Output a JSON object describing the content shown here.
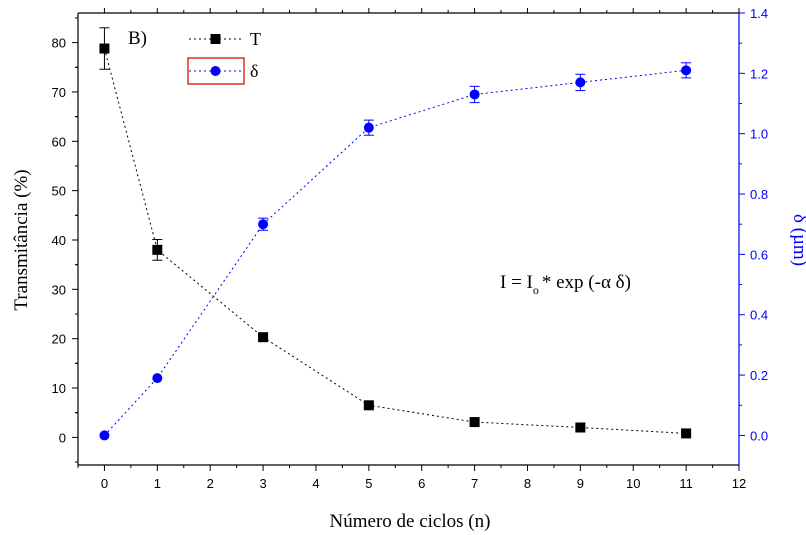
{
  "chart_data": {
    "type": "line",
    "panel_label": "B)",
    "xlabel": "Número de ciclos (n)",
    "ylabel_left": "Transmitância (%)",
    "ylabel_right": "δ (µm)",
    "xlim": [
      -0.5,
      12
    ],
    "ylim_left": [
      -5.6,
      86
    ],
    "ylim_right": [
      -0.098,
      1.4
    ],
    "x_ticks": [
      "0",
      "1",
      "2",
      "3",
      "4",
      "5",
      "6",
      "7",
      "8",
      "9",
      "10",
      "11",
      "12"
    ],
    "y_left_ticks": [
      "0",
      "10",
      "20",
      "30",
      "40",
      "50",
      "60",
      "70",
      "80"
    ],
    "y_right_ticks": [
      "0.0",
      "0.2",
      "0.4",
      "0.6",
      "0.8",
      "1.0",
      "1.2",
      "1.4"
    ],
    "grid": false,
    "legend_position": "top-left",
    "annotation": {
      "lhs": "I = I",
      "sub": "o",
      "rhs": "* exp (-α δ)"
    },
    "series": [
      {
        "name": "T",
        "axis": "left",
        "color": "#000000",
        "marker": "square",
        "x": [
          0,
          1,
          3,
          5,
          7,
          9,
          11
        ],
        "y": [
          78.8,
          38.0,
          20.3,
          6.5,
          3.1,
          2.0,
          0.8
        ],
        "error": [
          4.2,
          2.1,
          0.6,
          0.5,
          0.4,
          0.3,
          0.3
        ]
      },
      {
        "name": "δ",
        "axis": "right",
        "color": "#0000ff",
        "marker": "circle",
        "x": [
          0,
          1,
          3,
          5,
          7,
          9,
          11
        ],
        "y": [
          0.0,
          0.19,
          0.7,
          1.02,
          1.13,
          1.17,
          1.21
        ],
        "error": [
          0.0,
          0.0,
          0.02,
          0.025,
          0.027,
          0.027,
          0.025
        ]
      }
    ]
  }
}
